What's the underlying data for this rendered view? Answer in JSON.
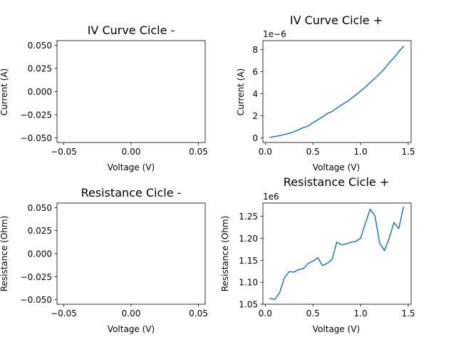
{
  "figure": {
    "background": "#ffffff",
    "line_color": "#1f77b4"
  },
  "chart_data": [
    {
      "type": "line",
      "title": "IV Curve Cicle -",
      "xlabel": "Voltage (V)",
      "ylabel": "Current (A)",
      "xlim": [
        -0.055,
        0.055
      ],
      "ylim": [
        -0.055,
        0.055
      ],
      "xticks": [
        -0.05,
        0.0,
        0.05
      ],
      "xtick_labels": [
        "−0.05",
        "0.00",
        "0.05"
      ],
      "yticks": [
        -0.05,
        -0.025,
        0.0,
        0.025,
        0.05
      ],
      "ytick_labels": [
        "−0.050",
        "−0.025",
        "0.000",
        "0.025",
        "0.050"
      ],
      "offset_text": "",
      "grid": false,
      "series": [
        {
          "x": [],
          "y": []
        }
      ]
    },
    {
      "type": "line",
      "title": "IV Curve Cicle +",
      "xlabel": "Voltage (V)",
      "ylabel": "Current (A)",
      "xlim": [
        -0.025,
        1.53
      ],
      "ylim": [
        -0.42,
        8.8
      ],
      "xticks": [
        0.0,
        0.5,
        1.0,
        1.5
      ],
      "xtick_labels": [
        "0.0",
        "0.5",
        "1.0",
        "1.5"
      ],
      "yticks": [
        0,
        2,
        4,
        6,
        8
      ],
      "ytick_labels": [
        "0",
        "2",
        "4",
        "6",
        "8"
      ],
      "offset_text": "1e−6",
      "grid": false,
      "series": [
        {
          "x": [
            0.05,
            0.1,
            0.15,
            0.2,
            0.25,
            0.3,
            0.35,
            0.4,
            0.45,
            0.5,
            0.55,
            0.6,
            0.65,
            0.7,
            0.75,
            0.8,
            0.85,
            0.9,
            0.95,
            1.0,
            1.05,
            1.1,
            1.15,
            1.2,
            1.25,
            1.3,
            1.35,
            1.4,
            1.45
          ],
          "y": [
            0.05,
            0.12,
            0.2,
            0.3,
            0.41,
            0.55,
            0.73,
            0.93,
            1.06,
            1.37,
            1.63,
            1.9,
            2.2,
            2.38,
            2.7,
            2.98,
            3.24,
            3.55,
            3.89,
            4.24,
            4.6,
            5.0,
            5.39,
            5.8,
            6.25,
            6.8,
            7.25,
            7.8,
            8.28
          ]
        }
      ]
    },
    {
      "type": "line",
      "title": "Resistance Cicle -",
      "xlabel": "Voltage (V)",
      "ylabel": "Resistance (Ohm)",
      "xlim": [
        -0.055,
        0.055
      ],
      "ylim": [
        -0.055,
        0.055
      ],
      "xticks": [
        -0.05,
        0.0,
        0.05
      ],
      "xtick_labels": [
        "−0.05",
        "0.00",
        "0.05"
      ],
      "yticks": [
        -0.05,
        -0.025,
        0.0,
        0.025,
        0.05
      ],
      "ytick_labels": [
        "−0.050",
        "−0.025",
        "0.000",
        "0.025",
        "0.050"
      ],
      "offset_text": "",
      "grid": false,
      "series": [
        {
          "x": [],
          "y": []
        }
      ]
    },
    {
      "type": "line",
      "title": "Resistance Cicle +",
      "xlabel": "Voltage (V)",
      "ylabel": "Resistance (Ohm)",
      "xlim": [
        -0.025,
        1.53
      ],
      "ylim": [
        1.05,
        1.28
      ],
      "xticks": [
        0.0,
        0.5,
        1.0,
        1.5
      ],
      "xtick_labels": [
        "0.0",
        "0.5",
        "1.0",
        "1.5"
      ],
      "yticks": [
        1.05,
        1.1,
        1.15,
        1.2,
        1.25
      ],
      "ytick_labels": [
        "1.05",
        "1.10",
        "1.15",
        "1.20",
        "1.25"
      ],
      "offset_text": "1e6",
      "grid": false,
      "series": [
        {
          "x": [
            0.05,
            0.1,
            0.15,
            0.2,
            0.25,
            0.3,
            0.35,
            0.4,
            0.45,
            0.5,
            0.55,
            0.6,
            0.65,
            0.7,
            0.75,
            0.8,
            0.85,
            0.9,
            0.95,
            1.0,
            1.05,
            1.1,
            1.15,
            1.2,
            1.25,
            1.3,
            1.35,
            1.4,
            1.45
          ],
          "y": [
            1.063,
            1.061,
            1.076,
            1.11,
            1.124,
            1.123,
            1.129,
            1.131,
            1.143,
            1.148,
            1.156,
            1.138,
            1.143,
            1.152,
            1.191,
            1.185,
            1.187,
            1.191,
            1.193,
            1.2,
            1.234,
            1.266,
            1.251,
            1.189,
            1.172,
            1.2,
            1.236,
            1.222,
            1.271
          ]
        }
      ]
    }
  ]
}
